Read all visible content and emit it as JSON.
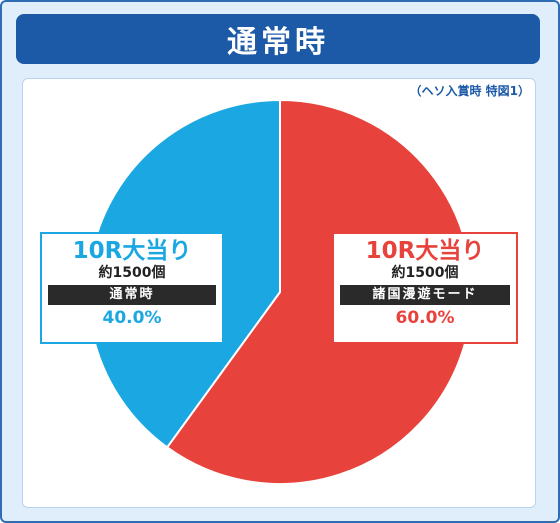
{
  "title": "通常時",
  "note": "（ヘソ入賞時 特図1）",
  "colors": {
    "blue": "#1aa7e2",
    "red": "#e8423c",
    "title_bg": "#1c5aa8"
  },
  "chart_data": {
    "type": "pie",
    "title": "通常時",
    "slices": [
      {
        "label": "10R大当り",
        "sub": "約1500個",
        "mode": "諸国漫遊モード",
        "value": 60.0,
        "pct_text": "60.0%",
        "color": "#e8423c"
      },
      {
        "label": "10R大当り",
        "sub": "約1500個",
        "mode": "通常時",
        "value": 40.0,
        "pct_text": "40.0%",
        "color": "#1aa7e2"
      }
    ]
  }
}
